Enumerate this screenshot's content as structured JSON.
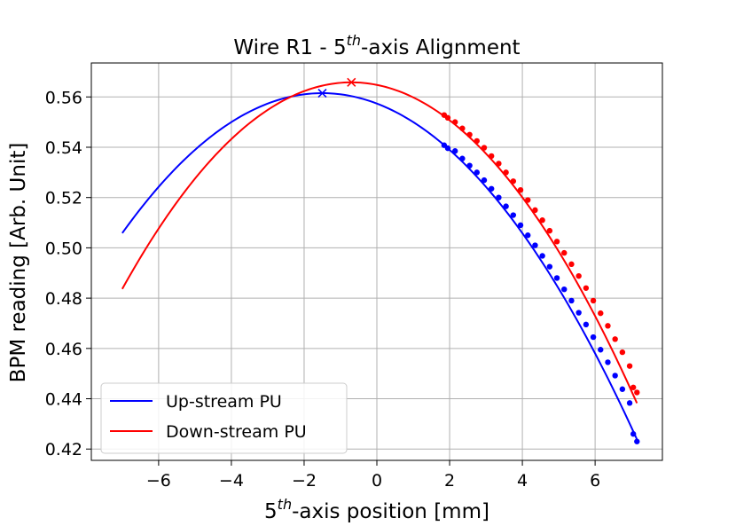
{
  "chart_data": {
    "type": "line",
    "title": "Wire R1 - 5th-axis Alignment",
    "title_parts": {
      "pre": "Wire R1 - 5",
      "sup": "th",
      "post": "-axis Alignment"
    },
    "xlabel": "5th-axis position [mm]",
    "xlabel_parts": {
      "pre": "5",
      "sup": "th",
      "post": "-axis position [mm]"
    },
    "ylabel": "BPM reading [Arb. Unit]",
    "xlim": [
      -7.85,
      7.85
    ],
    "ylim": [
      0.4155,
      0.5735
    ],
    "xticks": [
      -6,
      -4,
      -2,
      0,
      2,
      4,
      6
    ],
    "xtick_labels": [
      "−6",
      "−4",
      "−2",
      "0",
      "2",
      "4",
      "6"
    ],
    "yticks": [
      0.42,
      0.44,
      0.46,
      0.48,
      0.5,
      0.52,
      0.54,
      0.56
    ],
    "ytick_labels": [
      "0.42",
      "0.44",
      "0.46",
      "0.48",
      "0.50",
      "0.52",
      "0.54",
      "0.56"
    ],
    "grid": true,
    "legend_position": "lower-left",
    "series": [
      {
        "name": "Up-stream PU",
        "color": "#0000ff",
        "fit": {
          "vertex_x": -1.5,
          "vertex_y": 0.5615,
          "curvature": -0.00184,
          "x_range": [
            -7.0,
            7.15
          ]
        },
        "peak_marker": {
          "x": -1.5,
          "y": 0.5615
        },
        "points": [
          {
            "x": 1.85,
            "y": 0.5408
          },
          {
            "x": 1.95,
            "y": 0.5396
          },
          {
            "x": 2.15,
            "y": 0.5385
          },
          {
            "x": 2.35,
            "y": 0.5355
          },
          {
            "x": 2.55,
            "y": 0.5327
          },
          {
            "x": 2.75,
            "y": 0.53
          },
          {
            "x": 2.95,
            "y": 0.5269
          },
          {
            "x": 3.15,
            "y": 0.5235
          },
          {
            "x": 3.35,
            "y": 0.52
          },
          {
            "x": 3.55,
            "y": 0.5165
          },
          {
            "x": 3.75,
            "y": 0.513
          },
          {
            "x": 3.95,
            "y": 0.509
          },
          {
            "x": 4.15,
            "y": 0.505
          },
          {
            "x": 4.35,
            "y": 0.501
          },
          {
            "x": 4.55,
            "y": 0.4968
          },
          {
            "x": 4.75,
            "y": 0.4925
          },
          {
            "x": 4.95,
            "y": 0.488
          },
          {
            "x": 5.15,
            "y": 0.4835
          },
          {
            "x": 5.35,
            "y": 0.479
          },
          {
            "x": 5.55,
            "y": 0.4742
          },
          {
            "x": 5.75,
            "y": 0.4695
          },
          {
            "x": 5.95,
            "y": 0.4645
          },
          {
            "x": 6.15,
            "y": 0.4595
          },
          {
            "x": 6.35,
            "y": 0.4545
          },
          {
            "x": 6.55,
            "y": 0.4492
          },
          {
            "x": 6.75,
            "y": 0.4438
          },
          {
            "x": 6.95,
            "y": 0.4383
          },
          {
            "x": 7.05,
            "y": 0.426
          },
          {
            "x": 7.15,
            "y": 0.423
          }
        ]
      },
      {
        "name": "Down-stream PU",
        "color": "#ff0000",
        "fit": {
          "vertex_x": -0.7,
          "vertex_y": 0.5658,
          "curvature": -0.00207,
          "x_range": [
            -7.0,
            7.15
          ]
        },
        "peak_marker": {
          "x": -0.7,
          "y": 0.5658
        },
        "points": [
          {
            "x": 1.85,
            "y": 0.5528
          },
          {
            "x": 1.95,
            "y": 0.5517
          },
          {
            "x": 2.15,
            "y": 0.55
          },
          {
            "x": 2.35,
            "y": 0.5475
          },
          {
            "x": 2.55,
            "y": 0.545
          },
          {
            "x": 2.75,
            "y": 0.5425
          },
          {
            "x": 2.95,
            "y": 0.5398
          },
          {
            "x": 3.15,
            "y": 0.5365
          },
          {
            "x": 3.35,
            "y": 0.5335
          },
          {
            "x": 3.55,
            "y": 0.53
          },
          {
            "x": 3.75,
            "y": 0.5265
          },
          {
            "x": 3.95,
            "y": 0.523
          },
          {
            "x": 4.15,
            "y": 0.519
          },
          {
            "x": 4.35,
            "y": 0.515
          },
          {
            "x": 4.55,
            "y": 0.511
          },
          {
            "x": 4.75,
            "y": 0.5068
          },
          {
            "x": 4.95,
            "y": 0.5025
          },
          {
            "x": 5.15,
            "y": 0.498
          },
          {
            "x": 5.35,
            "y": 0.4935
          },
          {
            "x": 5.55,
            "y": 0.4888
          },
          {
            "x": 5.75,
            "y": 0.484
          },
          {
            "x": 5.95,
            "y": 0.479
          },
          {
            "x": 6.15,
            "y": 0.474
          },
          {
            "x": 6.35,
            "y": 0.469
          },
          {
            "x": 6.55,
            "y": 0.4637
          },
          {
            "x": 6.75,
            "y": 0.4585
          },
          {
            "x": 6.95,
            "y": 0.453
          },
          {
            "x": 7.05,
            "y": 0.4445
          },
          {
            "x": 7.15,
            "y": 0.4425
          }
        ]
      }
    ]
  }
}
